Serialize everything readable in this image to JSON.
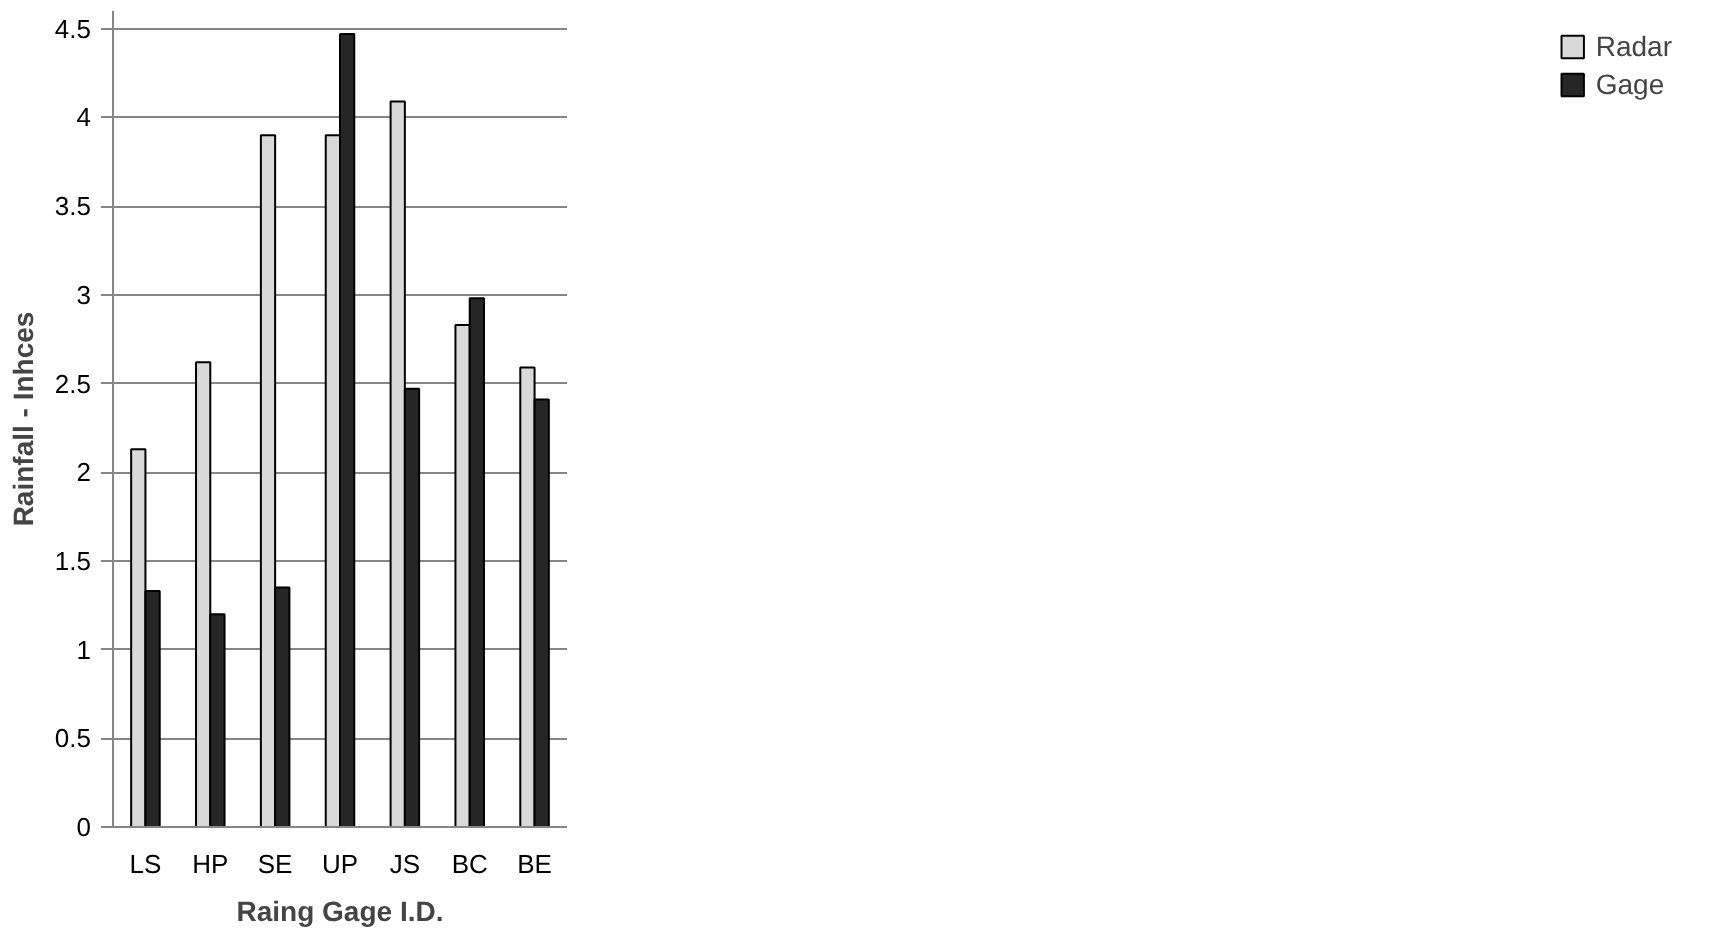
{
  "chart_data": {
    "type": "bar",
    "xlabel": "Raing Gage I.D.",
    "ylabel": "Rainfall - Inhces",
    "categories": [
      "LS",
      "HP",
      "SE",
      "UP",
      "JS",
      "BC",
      "BE"
    ],
    "series": [
      {
        "name": "Radar",
        "color": "#d9d9d9",
        "values": [
          2.13,
          2.62,
          3.9,
          3.9,
          4.09,
          2.83,
          2.59
        ]
      },
      {
        "name": "Gage",
        "color": "#262626",
        "values": [
          1.33,
          1.2,
          1.35,
          4.47,
          2.47,
          2.98,
          2.41
        ]
      }
    ],
    "ylim": [
      0,
      4.6
    ],
    "yticks": [
      0,
      0.5,
      1,
      1.5,
      2,
      2.5,
      3,
      3.5,
      4,
      4.5
    ],
    "grid": "y",
    "legend": "right"
  }
}
